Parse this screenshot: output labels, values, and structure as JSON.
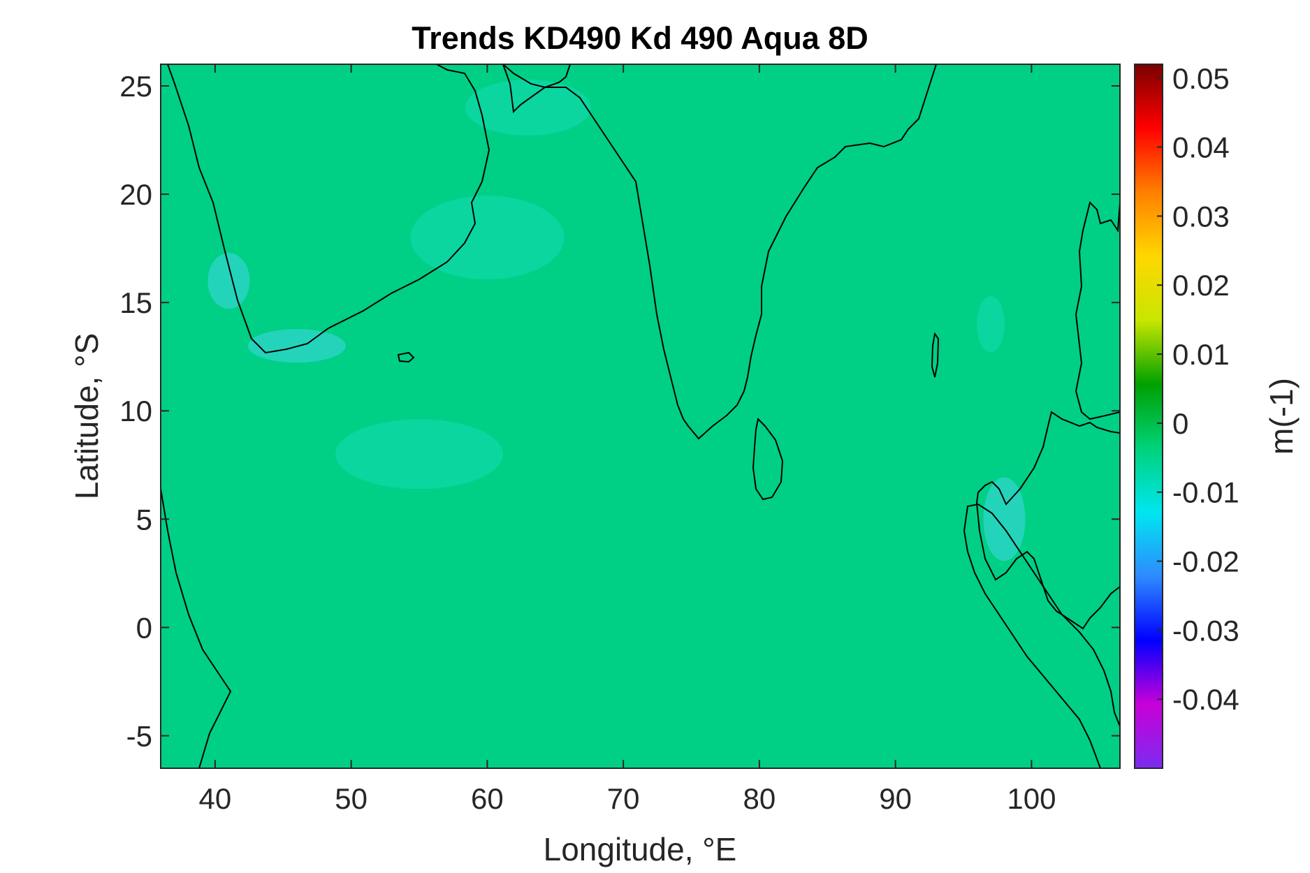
{
  "chart_data": {
    "type": "heatmap",
    "title": "Trends KD490 Kd 490 Aqua 8D",
    "xlabel": "Longitude, °E",
    "ylabel": "Latitude, °S",
    "xlim": [
      36,
      106.5
    ],
    "ylim": [
      -6.5,
      26
    ],
    "xticks": [
      40,
      50,
      60,
      70,
      80,
      90,
      100
    ],
    "xtick_labels": [
      "40",
      "50",
      "60",
      "70",
      "80",
      "90",
      "100"
    ],
    "yticks": [
      25,
      20,
      15,
      10,
      5,
      0,
      -5
    ],
    "ytick_labels": [
      "25",
      "20",
      "15",
      "10",
      "5",
      "0",
      "-5"
    ],
    "dominant_value": 0,
    "colorbar": {
      "label": "m(-1)",
      "range": [
        -0.05,
        0.052
      ],
      "ticks": [
        0.05,
        0.04,
        0.03,
        0.02,
        0.01,
        0,
        -0.01,
        -0.02,
        -0.03,
        -0.04
      ],
      "tick_labels": [
        "0.05",
        "0.04",
        "0.03",
        "0.02",
        "0.01",
        "0",
        "-0.01",
        "-0.02",
        "-0.03",
        "-0.04"
      ],
      "colormap": [
        "#7b2cf0",
        "#c800d8",
        "#0000ff",
        "#2e8bff",
        "#00e6f0",
        "#00d27a",
        "#00a000",
        "#c8e600",
        "#ffd700",
        "#ff7f00",
        "#ff0000",
        "#7a0000"
      ]
    },
    "colors": {
      "ocean": "#00cf86",
      "ocean_alt": "#14dcb4",
      "land": "#ffffff",
      "negative_patch": "#3fd9e8"
    }
  }
}
